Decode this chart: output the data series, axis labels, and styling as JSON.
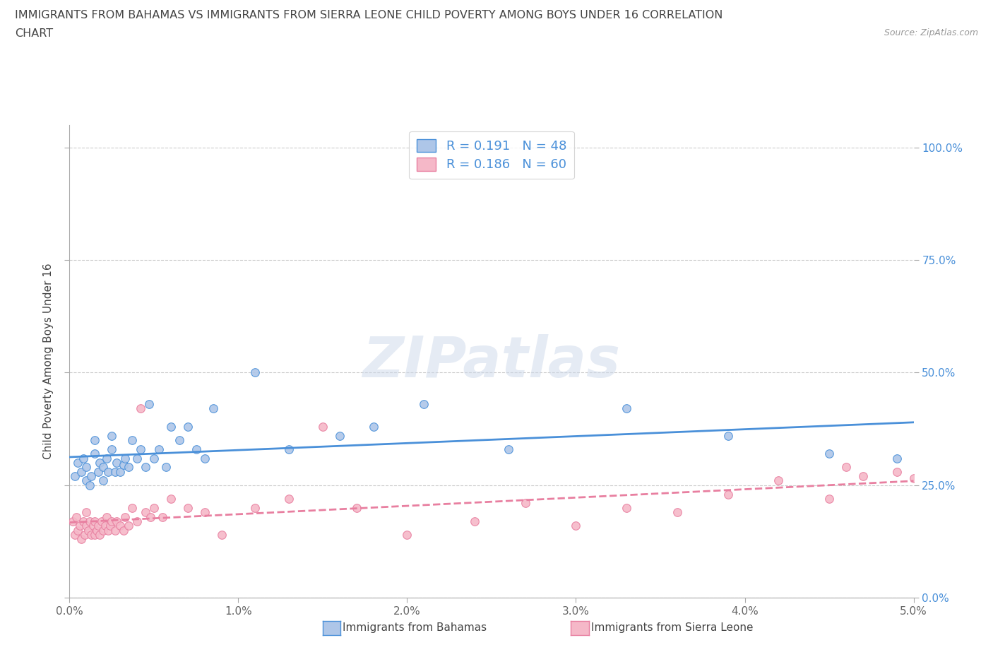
{
  "title_line1": "IMMIGRANTS FROM BAHAMAS VS IMMIGRANTS FROM SIERRA LEONE CHILD POVERTY AMONG BOYS UNDER 16 CORRELATION",
  "title_line2": "CHART",
  "source_text": "Source: ZipAtlas.com",
  "ylabel": "Child Poverty Among Boys Under 16",
  "xlim": [
    0.0,
    0.05
  ],
  "ylim": [
    0.0,
    1.05
  ],
  "x_ticks": [
    0.0,
    0.01,
    0.02,
    0.03,
    0.04,
    0.05
  ],
  "x_tick_labels": [
    "0.0%",
    "1.0%",
    "2.0%",
    "3.0%",
    "4.0%",
    "5.0%"
  ],
  "y_ticks": [
    0.0,
    0.25,
    0.5,
    0.75,
    1.0
  ],
  "y_tick_labels": [
    "0.0%",
    "25.0%",
    "50.0%",
    "75.0%",
    "100.0%"
  ],
  "bahamas_color": "#aec6e8",
  "sierra_leone_color": "#f5b8c8",
  "trend_bahamas_color": "#4a90d9",
  "trend_sierra_leone_color": "#e87fa0",
  "R_bahamas": 0.191,
  "N_bahamas": 48,
  "R_sierra_leone": 0.186,
  "N_sierra_leone": 60,
  "legend_label_bahamas": "Immigrants from Bahamas",
  "legend_label_sierra_leone": "Immigrants from Sierra Leone",
  "watermark": "ZIPatlas",
  "background_color": "#ffffff",
  "grid_color": "#cccccc",
  "title_color": "#444444",
  "axis_label_color": "#444444",
  "tick_label_color": "#666666",
  "right_tick_color": "#4a90d9",
  "bahamas_scatter_x": [
    0.0003,
    0.0005,
    0.0007,
    0.0008,
    0.001,
    0.001,
    0.0012,
    0.0013,
    0.0015,
    0.0015,
    0.0017,
    0.0018,
    0.002,
    0.002,
    0.0022,
    0.0023,
    0.0025,
    0.0025,
    0.0027,
    0.0028,
    0.003,
    0.0032,
    0.0033,
    0.0035,
    0.0037,
    0.004,
    0.0042,
    0.0045,
    0.0047,
    0.005,
    0.0053,
    0.0057,
    0.006,
    0.0065,
    0.007,
    0.0075,
    0.008,
    0.0085,
    0.011,
    0.013,
    0.016,
    0.018,
    0.021,
    0.026,
    0.033,
    0.039,
    0.045,
    0.049
  ],
  "bahamas_scatter_y": [
    0.27,
    0.3,
    0.28,
    0.31,
    0.26,
    0.29,
    0.25,
    0.27,
    0.32,
    0.35,
    0.28,
    0.3,
    0.26,
    0.29,
    0.31,
    0.28,
    0.33,
    0.36,
    0.28,
    0.3,
    0.28,
    0.295,
    0.31,
    0.29,
    0.35,
    0.31,
    0.33,
    0.29,
    0.43,
    0.31,
    0.33,
    0.29,
    0.38,
    0.35,
    0.38,
    0.33,
    0.31,
    0.42,
    0.5,
    0.33,
    0.36,
    0.38,
    0.43,
    0.33,
    0.42,
    0.36,
    0.32,
    0.31
  ],
  "sierra_leone_scatter_x": [
    0.0002,
    0.0003,
    0.0004,
    0.0005,
    0.0006,
    0.0007,
    0.0008,
    0.0009,
    0.001,
    0.001,
    0.0011,
    0.0012,
    0.0013,
    0.0014,
    0.0015,
    0.0015,
    0.0016,
    0.0017,
    0.0018,
    0.0019,
    0.002,
    0.0021,
    0.0022,
    0.0023,
    0.0024,
    0.0025,
    0.0027,
    0.0028,
    0.003,
    0.0032,
    0.0033,
    0.0035,
    0.0037,
    0.004,
    0.0042,
    0.0045,
    0.0048,
    0.005,
    0.0055,
    0.006,
    0.007,
    0.008,
    0.009,
    0.011,
    0.013,
    0.015,
    0.017,
    0.02,
    0.024,
    0.027,
    0.03,
    0.033,
    0.036,
    0.039,
    0.042,
    0.045,
    0.046,
    0.047,
    0.049,
    0.05
  ],
  "sierra_leone_scatter_y": [
    0.17,
    0.14,
    0.18,
    0.15,
    0.16,
    0.13,
    0.17,
    0.14,
    0.16,
    0.19,
    0.15,
    0.17,
    0.14,
    0.16,
    0.14,
    0.17,
    0.15,
    0.16,
    0.14,
    0.17,
    0.15,
    0.16,
    0.18,
    0.15,
    0.16,
    0.17,
    0.15,
    0.17,
    0.16,
    0.15,
    0.18,
    0.16,
    0.2,
    0.17,
    0.42,
    0.19,
    0.18,
    0.2,
    0.18,
    0.22,
    0.2,
    0.19,
    0.14,
    0.2,
    0.22,
    0.38,
    0.2,
    0.14,
    0.17,
    0.21,
    0.16,
    0.2,
    0.19,
    0.23,
    0.26,
    0.22,
    0.29,
    0.27,
    0.28,
    0.265
  ]
}
